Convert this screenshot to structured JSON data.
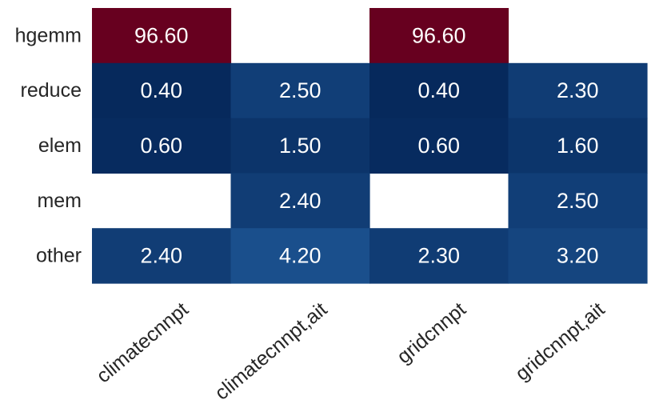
{
  "chart_data": {
    "type": "heatmap",
    "title": "",
    "xlabel": "",
    "ylabel": "",
    "rows": [
      "hgemm",
      "reduce",
      "elem",
      "mem",
      "other"
    ],
    "columns": [
      "climatecnnpt",
      "climatecnnpt,ait",
      "gridcnnpt",
      "gridcnnpt,ait"
    ],
    "values": [
      [
        96.6,
        null,
        96.6,
        null
      ],
      [
        0.4,
        2.5,
        0.4,
        2.3
      ],
      [
        0.6,
        1.5,
        0.6,
        1.6
      ],
      [
        null,
        2.4,
        null,
        2.5
      ],
      [
        2.4,
        4.2,
        2.3,
        3.2
      ]
    ],
    "labels": [
      [
        "96.60",
        "",
        "96.60",
        ""
      ],
      [
        "0.40",
        "2.50",
        "0.40",
        "2.30"
      ],
      [
        "0.60",
        "1.50",
        "0.60",
        "1.60"
      ],
      [
        "",
        "2.40",
        "",
        "2.50"
      ],
      [
        "2.40",
        "4.20",
        "2.30",
        "3.20"
      ]
    ],
    "colorscale": {
      "low": "#06295c",
      "mid": "#1a4f8c",
      "high": "#67001f"
    },
    "colorbar": false,
    "grid": false
  }
}
